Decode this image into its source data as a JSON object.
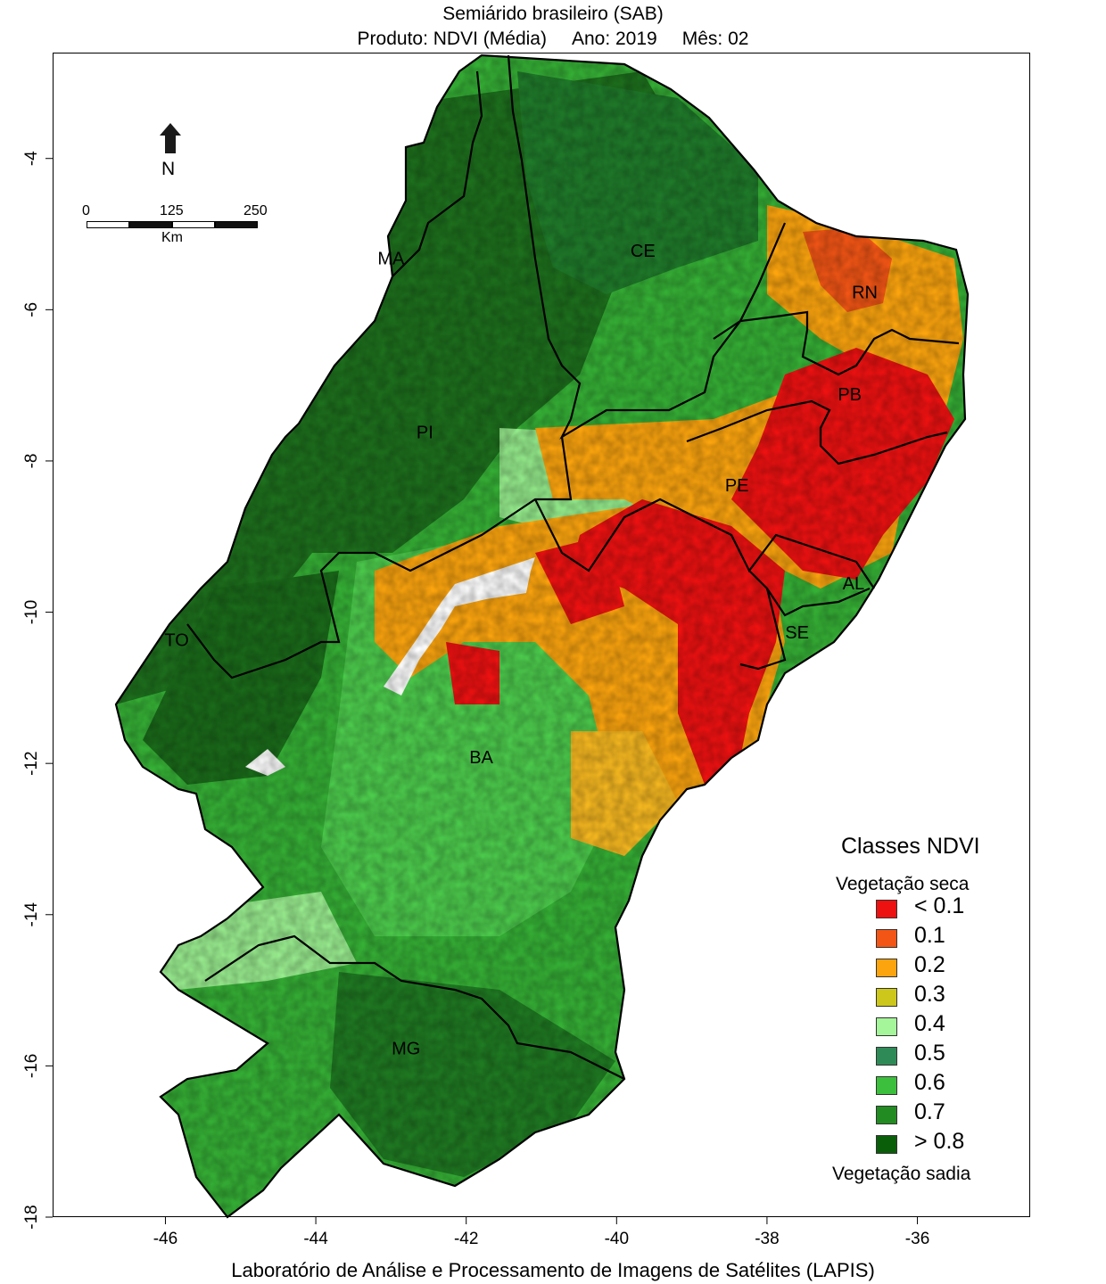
{
  "title": {
    "line1": "Semiárido brasileiro (SAB)",
    "product": "Produto: NDVI (Média)",
    "year": "Ano:  2019",
    "month": "Mês:  02"
  },
  "footer": "Laboratório de Análise e Processamento de Imagens de Satélites (LAPIS)",
  "axes": {
    "x_ticks": [
      "-46",
      "-44",
      "-42",
      "-40",
      "-38",
      "-36"
    ],
    "y_ticks": [
      "-4",
      "-6",
      "-8",
      "-10",
      "-12",
      "-14",
      "-16",
      "-18"
    ],
    "xlim": [
      -47.5,
      -34.5
    ],
    "ylim": [
      -18.0,
      -2.6
    ]
  },
  "north_arrow": {
    "label": "N",
    "icon": "north-arrow-icon"
  },
  "scale_bar": {
    "ticks": [
      "0",
      "125",
      "250"
    ],
    "unit": "Km"
  },
  "states": [
    {
      "abbr": "MA",
      "lon": -43.0,
      "lat": -5.4
    },
    {
      "abbr": "CE",
      "lon": -39.65,
      "lat": -5.3
    },
    {
      "abbr": "RN",
      "lon": -36.7,
      "lat": -5.85
    },
    {
      "abbr": "PB",
      "lon": -36.9,
      "lat": -7.2
    },
    {
      "abbr": "PI",
      "lon": -42.55,
      "lat": -7.7
    },
    {
      "abbr": "PE",
      "lon": -38.4,
      "lat": -8.4
    },
    {
      "abbr": "AL",
      "lon": -36.85,
      "lat": -9.7
    },
    {
      "abbr": "SE",
      "lon": -37.6,
      "lat": -10.35
    },
    {
      "abbr": "TO",
      "lon": -45.85,
      "lat": -10.45
    },
    {
      "abbr": "BA",
      "lon": -41.8,
      "lat": -12.0
    },
    {
      "abbr": "MG",
      "lon": -42.8,
      "lat": -15.85
    }
  ],
  "legend": {
    "title": "Classes NDVI",
    "top_note": "Vegetação seca",
    "bottom_note": "Vegetação sadia",
    "classes": [
      {
        "label": "< 0.1",
        "color": "#ee1111"
      },
      {
        "label": "0.1",
        "color": "#f25515"
      },
      {
        "label": "0.2",
        "color": "#fba40e"
      },
      {
        "label": "0.3",
        "color": "#cdc71b"
      },
      {
        "label": "0.4",
        "color": "#a5f59a"
      },
      {
        "label": "0.5",
        "color": "#2e8b57"
      },
      {
        "label": "0.6",
        "color": "#3cbf3c"
      },
      {
        "label": "0.7",
        "color": "#228b22"
      },
      {
        "label": "> 0.8",
        "color": "#0a5e0a"
      }
    ]
  }
}
